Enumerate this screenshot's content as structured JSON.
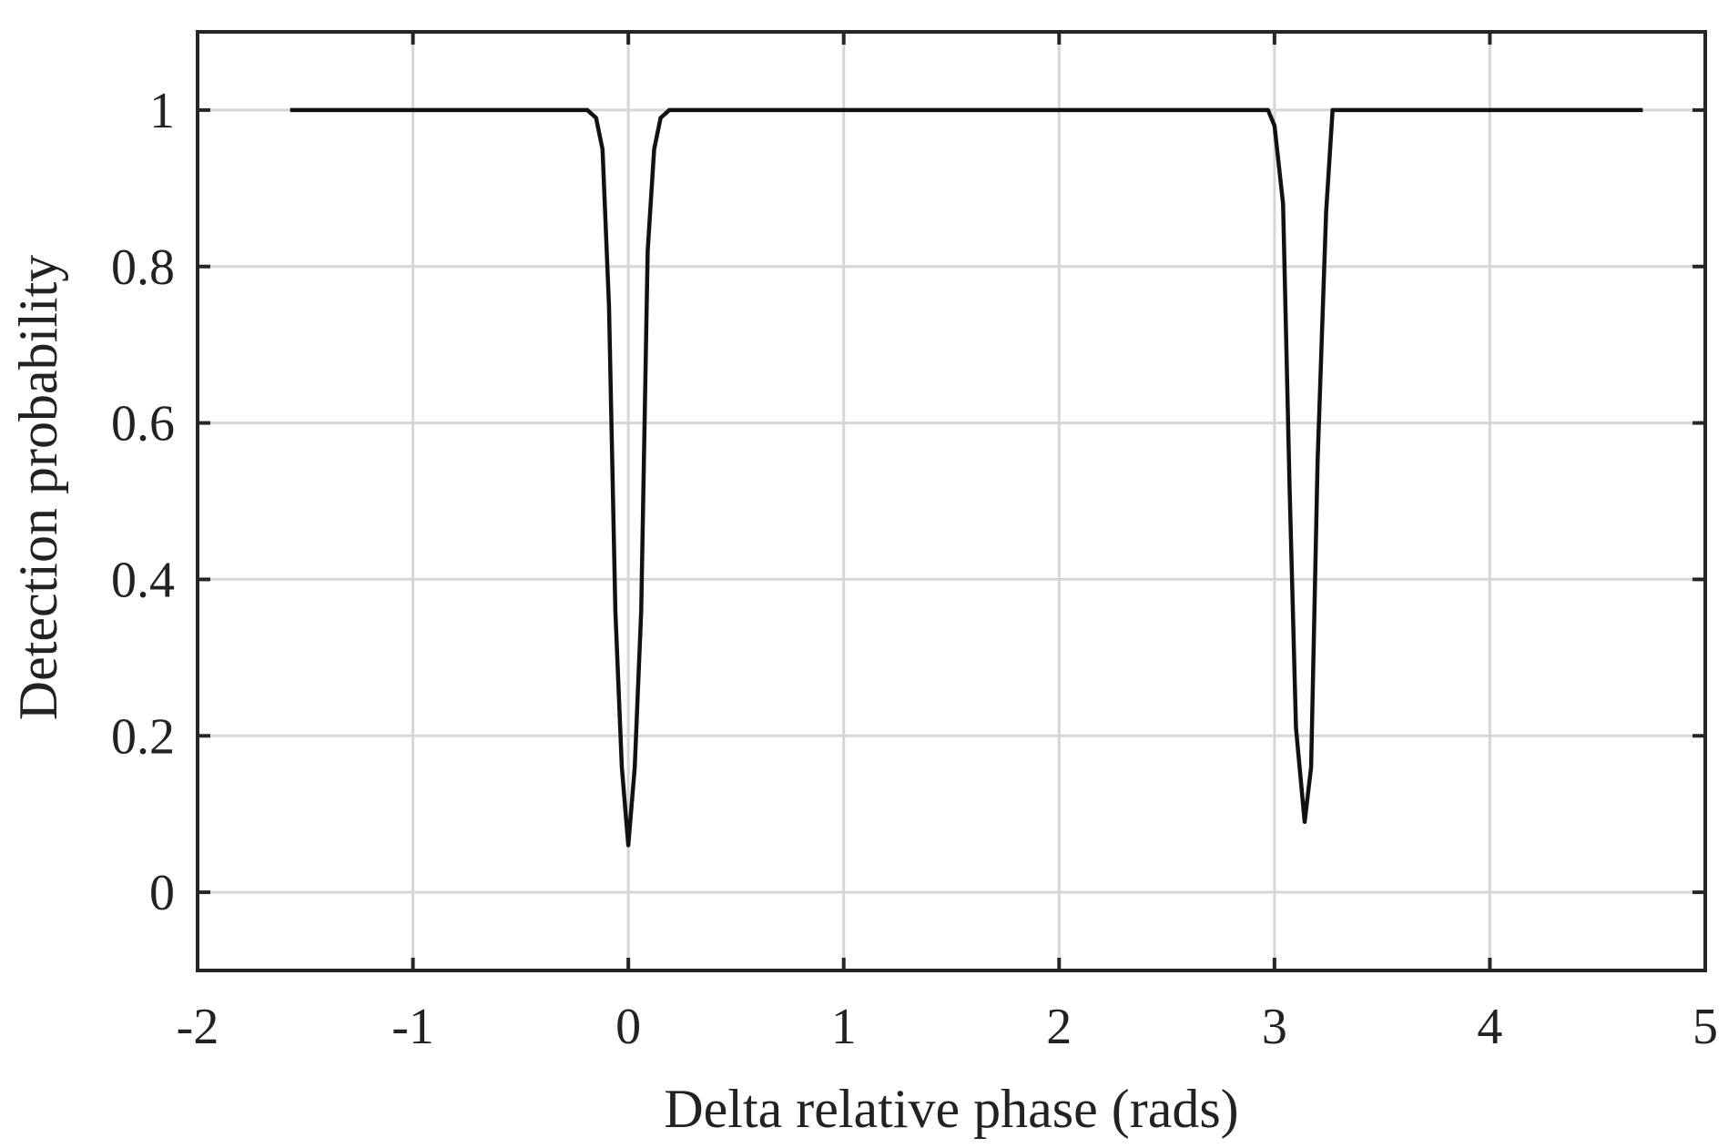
{
  "chart_data": {
    "type": "line",
    "title": "",
    "xlabel": "Delta relative phase (rads)",
    "ylabel": "Detection probability",
    "xlim": [
      -2,
      5
    ],
    "ylim": [
      -0.1,
      1.1
    ],
    "xticks": [
      -2,
      -1,
      0,
      1,
      2,
      3,
      4,
      5
    ],
    "yticks": [
      0,
      0.2,
      0.4,
      0.6,
      0.8,
      1
    ],
    "xtick_labels": [
      "-2",
      "-1",
      "0",
      "1",
      "2",
      "3",
      "4",
      "5"
    ],
    "ytick_labels": [
      "0",
      "0.2",
      "0.4",
      "0.6",
      "0.8",
      "1"
    ],
    "grid": true,
    "legend": "none",
    "series": [
      {
        "color": "#111111",
        "x": [
          -1.57,
          -0.19,
          -0.15,
          -0.12,
          -0.09,
          -0.06,
          -0.03,
          0.0,
          0.03,
          0.06,
          0.09,
          0.12,
          0.15,
          0.19,
          2.97,
          3.0,
          3.04,
          3.07,
          3.1,
          3.14,
          3.17,
          3.2,
          3.24,
          3.27,
          4.71
        ],
        "y": [
          1.0,
          1.0,
          0.99,
          0.95,
          0.75,
          0.36,
          0.16,
          0.06,
          0.16,
          0.36,
          0.82,
          0.95,
          0.99,
          1.0,
          1.0,
          0.98,
          0.88,
          0.52,
          0.21,
          0.09,
          0.16,
          0.55,
          0.87,
          1.0,
          1.0
        ]
      }
    ]
  }
}
